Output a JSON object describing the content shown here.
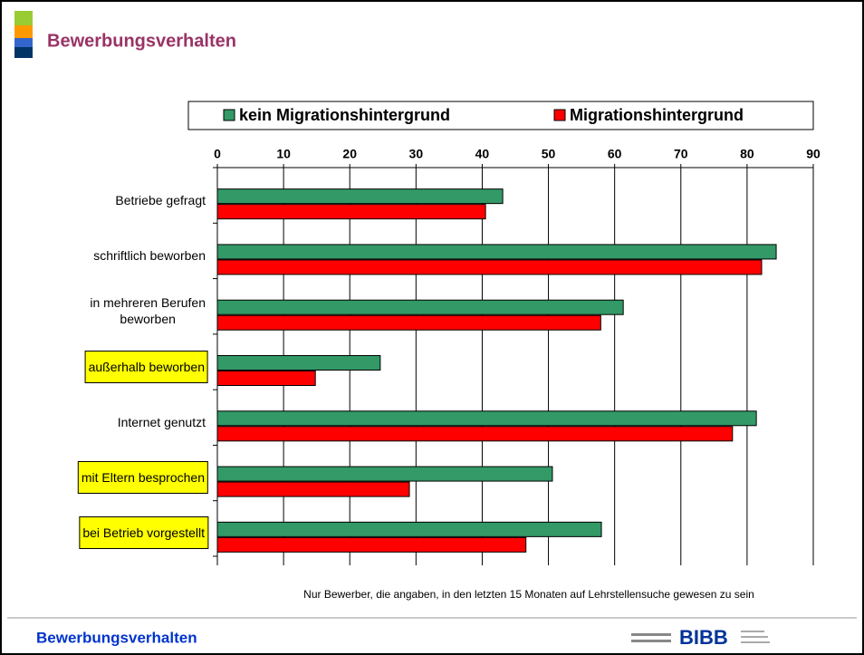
{
  "slide_title": "Bewerbungsverhalten",
  "footer_title": "Bewerbungsverhalten",
  "logo": "BIBB",
  "chart_data": {
    "type": "hbar",
    "categories": [
      "Betriebe gefragt",
      "schriftlich beworben",
      "in mehreren Berufen\nbeworben",
      "außerhalb beworben",
      "Internet genutzt",
      "mit Eltern besprochen",
      "bei Betrieb vorgestellt"
    ],
    "highlighted": [
      3,
      5,
      6
    ],
    "series": [
      {
        "name": "kein Migrationshintergrund",
        "color": "#339966",
        "values": [
          43.1,
          84.4,
          61.3,
          24.6,
          81.4,
          50.6,
          58.0
        ]
      },
      {
        "name": "Migrationshintergrund",
        "color": "#ff0000",
        "values": [
          40.5,
          82.2,
          57.9,
          14.8,
          77.8,
          29.0,
          46.6
        ]
      }
    ],
    "xlim": [
      0,
      90
    ],
    "xticks": [
      0,
      10,
      20,
      30,
      40,
      50,
      60,
      70,
      80,
      90
    ],
    "grid": true,
    "legend": "top",
    "note": "Nur Bewerber, die angaben, in den letzten 15 Monaten auf Lehrstellensuche gewesen zu sein"
  }
}
